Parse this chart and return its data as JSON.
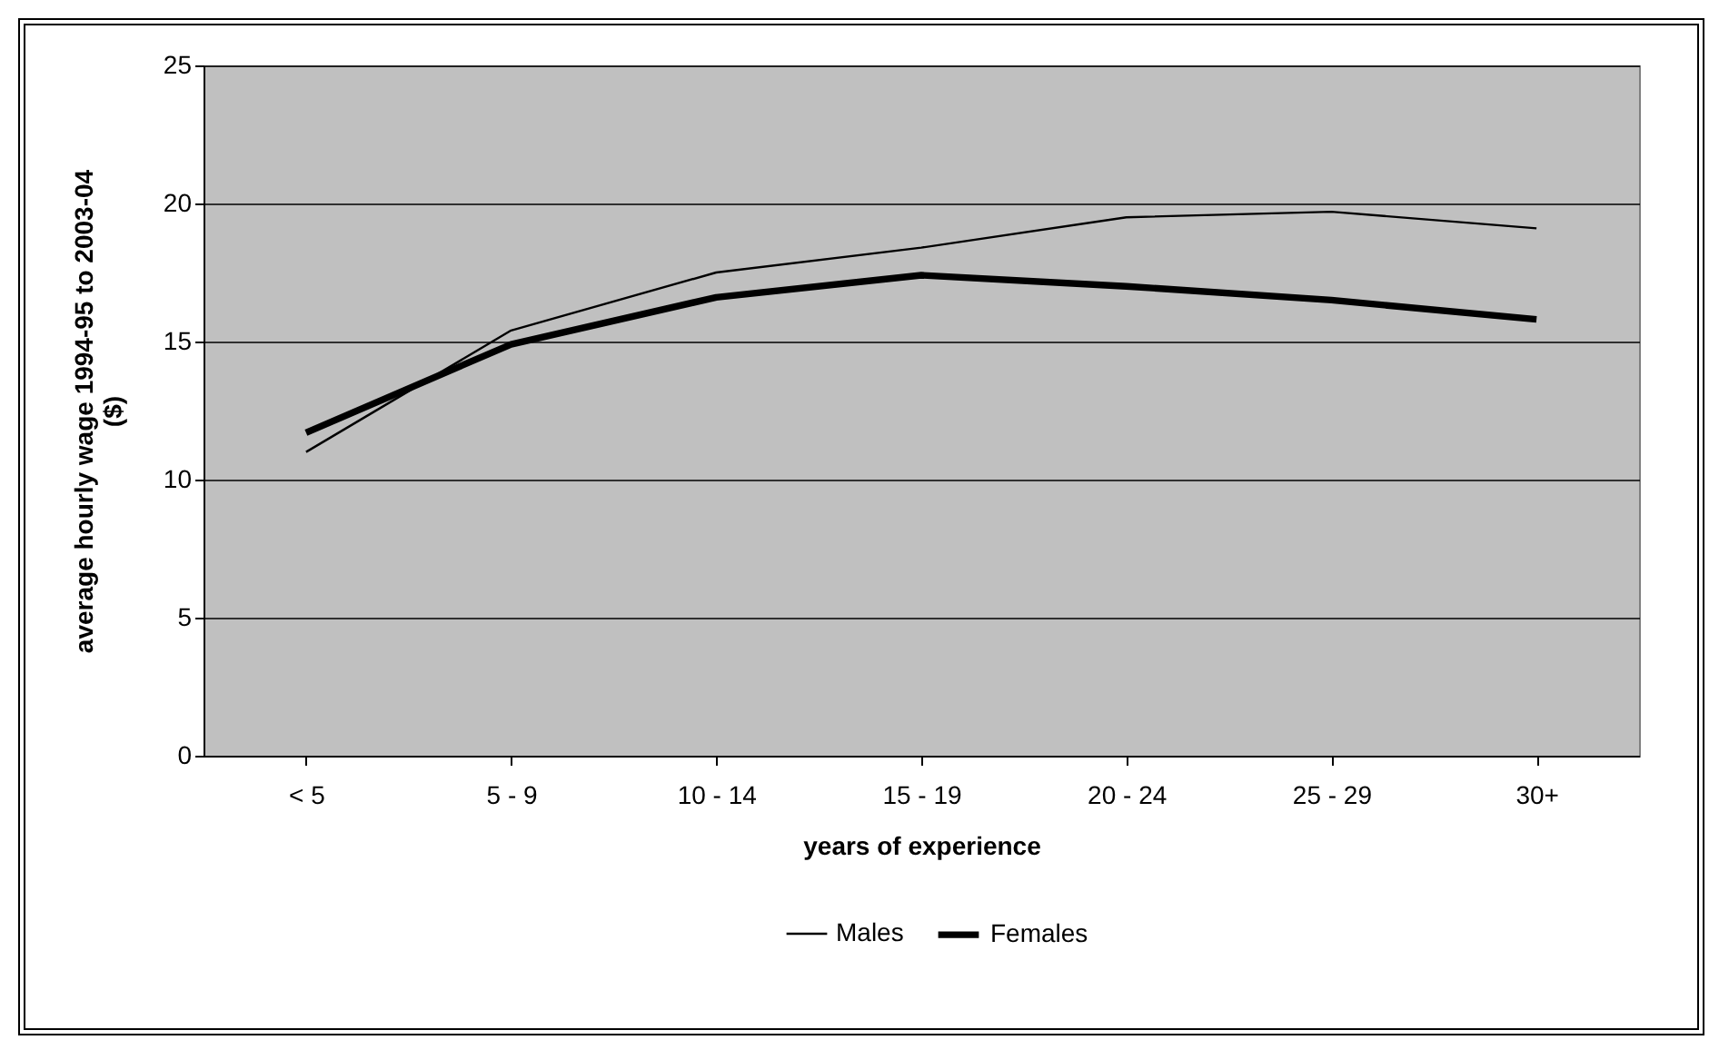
{
  "chart_data": {
    "type": "line",
    "xlabel": "years of experience",
    "ylabel": "average hourly wage 1994-95 to 2003-04 ($)",
    "categories": [
      "< 5",
      "5 - 9",
      "10 - 14",
      "15 - 19",
      "20 - 24",
      "25 - 29",
      "30+"
    ],
    "series": [
      {
        "name": "Males",
        "color": "#000000",
        "values": [
          11.0,
          15.4,
          17.5,
          18.4,
          19.5,
          19.7,
          19.1
        ]
      },
      {
        "name": "Females",
        "color": "#000000",
        "values": [
          11.7,
          14.9,
          16.6,
          17.4,
          17.0,
          16.5,
          15.8
        ]
      }
    ],
    "ylim": [
      0,
      25
    ],
    "yticks": [
      0,
      5,
      10,
      15,
      20,
      25
    ],
    "grid": "y",
    "legend": "bottom",
    "marker": "none",
    "line_style": "solid"
  }
}
